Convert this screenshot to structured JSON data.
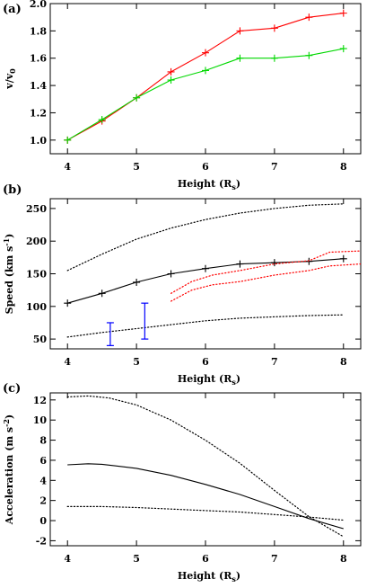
{
  "chart_data": [
    {
      "panel": "(a)",
      "type": "line",
      "xlabel": "Height (R",
      "xlabel_sub": "s",
      "xlabel_end": ")",
      "ylabel": "v/v",
      "ylabel_sub": "0",
      "xlim": [
        3.75,
        8.25
      ],
      "ylim": [
        0.9,
        2.0
      ],
      "xticks": [
        4,
        5,
        6,
        7,
        8
      ],
      "yticks": [
        1.0,
        1.2,
        1.4,
        1.6,
        1.8,
        2.0
      ],
      "grid": false,
      "series": [
        {
          "color": "#ff0000",
          "marker": "+",
          "x": [
            4.0,
            4.5,
            5.0,
            5.5,
            6.0,
            6.5,
            7.0,
            7.5,
            8.0
          ],
          "y": [
            1.0,
            1.14,
            1.31,
            1.5,
            1.64,
            1.8,
            1.82,
            1.9,
            1.93
          ]
        },
        {
          "color": "#00d800",
          "marker": "+",
          "x": [
            4.0,
            4.5,
            5.0,
            5.5,
            6.0,
            6.5,
            7.0,
            7.5,
            8.0
          ],
          "y": [
            1.0,
            1.15,
            1.31,
            1.44,
            1.51,
            1.6,
            1.6,
            1.62,
            1.67
          ]
        }
      ]
    },
    {
      "panel": "(b)",
      "type": "line",
      "xlabel": "Height (R",
      "xlabel_sub": "s",
      "xlabel_end": ")",
      "ylabel": "Speed (km s",
      "ylabel_sup": "-1",
      "ylabel_end": ")",
      "xlim": [
        3.75,
        8.25
      ],
      "ylim": [
        35,
        265
      ],
      "xticks": [
        4,
        5,
        6,
        7,
        8
      ],
      "yticks": [
        50,
        100,
        150,
        200,
        250
      ],
      "grid": false,
      "series": [
        {
          "color": "#000000",
          "style": "solid",
          "marker": "+",
          "x": [
            4.0,
            4.5,
            5.0,
            5.5,
            6.0,
            6.5,
            7.0,
            7.5,
            8.0
          ],
          "y": [
            105,
            120,
            137,
            150,
            158,
            165,
            167,
            169,
            173
          ]
        },
        {
          "color": "#000000",
          "style": "dotted",
          "x": [
            4.0,
            4.5,
            5.0,
            5.5,
            6.0,
            6.5,
            7.0,
            7.5,
            8.0
          ],
          "y": [
            155,
            180,
            203,
            220,
            233,
            243,
            250,
            255,
            257
          ]
        },
        {
          "color": "#000000",
          "style": "dotted",
          "x": [
            4.0,
            4.5,
            5.0,
            5.5,
            6.0,
            6.5,
            7.0,
            7.5,
            8.0
          ],
          "y": [
            53,
            60,
            66,
            72,
            78,
            82,
            84,
            86,
            87
          ]
        },
        {
          "color": "#ff0000",
          "style": "dotted",
          "x": [
            5.5,
            5.8,
            6.1,
            6.5,
            7.0,
            7.5,
            7.8,
            8.25
          ],
          "y": [
            108,
            125,
            133,
            138,
            148,
            155,
            162,
            165
          ]
        },
        {
          "color": "#ff0000",
          "style": "dotted",
          "x": [
            5.5,
            5.8,
            6.1,
            6.5,
            7.0,
            7.5,
            7.8,
            8.25
          ],
          "y": [
            120,
            138,
            148,
            155,
            165,
            170,
            183,
            185
          ]
        },
        {
          "color": "#0000ff",
          "type": "errorbar",
          "x": [
            4.62,
            5.12
          ],
          "low": [
            40,
            50
          ],
          "high": [
            75,
            105
          ]
        }
      ]
    },
    {
      "panel": "(c)",
      "type": "line",
      "xlabel": "Height (R",
      "xlabel_sub": "s",
      "xlabel_end": ")",
      "ylabel": "Acceleration (m s",
      "ylabel_sup": "-2",
      "ylabel_end": ")",
      "xlim": [
        3.75,
        8.25
      ],
      "ylim": [
        -2.5,
        12.7
      ],
      "xticks": [
        4,
        5,
        6,
        7,
        8
      ],
      "yticks": [
        -2,
        0,
        2,
        4,
        6,
        8,
        10,
        12
      ],
      "grid": false,
      "series": [
        {
          "color": "#000000",
          "style": "solid",
          "x": [
            4.0,
            4.3,
            4.5,
            5.0,
            5.5,
            6.0,
            6.5,
            7.0,
            7.5,
            8.0
          ],
          "y": [
            5.55,
            5.65,
            5.6,
            5.2,
            4.5,
            3.6,
            2.6,
            1.4,
            0.2,
            -0.8
          ]
        },
        {
          "color": "#000000",
          "style": "dotted",
          "x": [
            4.0,
            4.3,
            4.6,
            5.0,
            5.5,
            6.0,
            6.5,
            7.0,
            7.5,
            8.0
          ],
          "y": [
            12.3,
            12.4,
            12.2,
            11.5,
            10.0,
            8.0,
            5.7,
            3.0,
            0.4,
            -1.6
          ]
        },
        {
          "color": "#000000",
          "style": "dotted",
          "x": [
            4.0,
            4.5,
            5.0,
            5.5,
            6.0,
            6.5,
            7.0,
            7.5,
            8.0
          ],
          "y": [
            1.4,
            1.4,
            1.3,
            1.15,
            1.0,
            0.85,
            0.6,
            0.35,
            0.05
          ]
        }
      ]
    }
  ]
}
